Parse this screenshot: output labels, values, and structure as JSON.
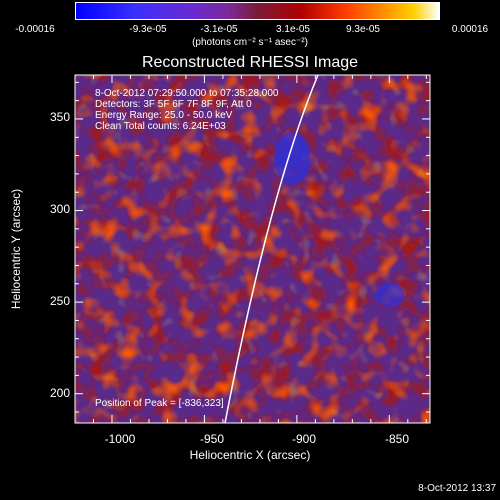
{
  "colorbar": {
    "ticks": [
      "-0.00016",
      "-9.3e-05",
      "-3.1e-05",
      "3.1e-05",
      "9.3e-05",
      "0.00016"
    ],
    "units": "(photons cm⁻² s⁻¹ asec⁻²)",
    "range": [
      -0.00016,
      0.00016
    ]
  },
  "title": "Reconstructed RHESSI Image",
  "annotations": {
    "time": "8-Oct-2012 07:29:50.000 to 07:35:28.000",
    "detectors": "Detectors: 3F 5F 6F 7F 8F 9F, Att 0",
    "energy": "Energy Range: 25.0 - 50.0 keV",
    "clean": "Clean     Total counts: 6.24E+03",
    "peak": "Position of Peak = [-836,323]"
  },
  "axes": {
    "xlabel": "Heliocentric X (arcsec)",
    "ylabel": "Heliocentric Y (arcsec)",
    "xticks": [
      "-1000",
      "-950",
      "-900",
      "-850"
    ],
    "yticks": [
      "200",
      "250",
      "300",
      "350"
    ],
    "xlim": [
      -1020,
      -828
    ],
    "ylim": [
      184,
      374
    ]
  },
  "footer": "8-Oct-2012 13:37"
}
